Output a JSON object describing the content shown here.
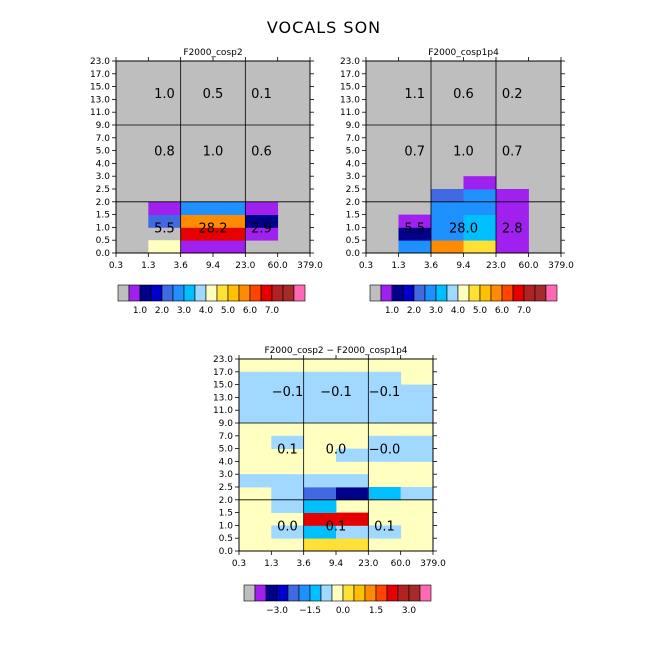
{
  "title": "VOCALS SON",
  "chart_data": [
    {
      "type": "heatmap",
      "title": "F2000_cosp2",
      "x_ticks": [
        "0.3",
        "1.3",
        "3.6",
        "9.4",
        "23.0",
        "60.0",
        "379.0"
      ],
      "y_ticks": [
        "0.0",
        "0.5",
        "1.0",
        "1.5",
        "2.0",
        "2.5",
        "3.0",
        "4.0",
        "5.0",
        "7.0",
        "9.0",
        "11.0",
        "13.0",
        "15.0",
        "17.0",
        "23.0"
      ],
      "background": "#bebebe",
      "cells": [
        {
          "x": 1,
          "y": 0,
          "c": 8
        },
        {
          "x": 2,
          "y": 0,
          "c": 1
        },
        {
          "x": 3,
          "y": 0,
          "c": 1
        },
        {
          "x": 2,
          "y": 1,
          "c": 13
        },
        {
          "x": 3,
          "y": 1,
          "c": 13
        },
        {
          "x": 4,
          "y": 1,
          "c": 1
        },
        {
          "x": 1,
          "y": 2,
          "c": 4
        },
        {
          "x": 2,
          "y": 2,
          "c": 11
        },
        {
          "x": 3,
          "y": 2,
          "c": 11
        },
        {
          "x": 4,
          "y": 2,
          "c": 2
        },
        {
          "x": 1,
          "y": 3,
          "c": 1
        },
        {
          "x": 2,
          "y": 3,
          "c": 5
        },
        {
          "x": 3,
          "y": 3,
          "c": 5
        },
        {
          "x": 4,
          "y": 3,
          "c": 1
        }
      ],
      "region_values": [
        {
          "xr": [
            1,
            2
          ],
          "yr": [
            0,
            4
          ],
          "v": "5.5"
        },
        {
          "xr": [
            2,
            4
          ],
          "yr": [
            0,
            4
          ],
          "v": "28.2"
        },
        {
          "xr": [
            4,
            5
          ],
          "yr": [
            0,
            4
          ],
          "v": "2.9"
        },
        {
          "xr": [
            1,
            2
          ],
          "yr": [
            6,
            10
          ],
          "v": "0.8"
        },
        {
          "xr": [
            2,
            4
          ],
          "yr": [
            6,
            10
          ],
          "v": "1.0"
        },
        {
          "xr": [
            4,
            5
          ],
          "yr": [
            6,
            10
          ],
          "v": "0.6"
        },
        {
          "xr": [
            1,
            2
          ],
          "yr": [
            10,
            15
          ],
          "v": "1.0"
        },
        {
          "xr": [
            2,
            4
          ],
          "yr": [
            10,
            15
          ],
          "v": "0.5"
        },
        {
          "xr": [
            4,
            5
          ],
          "yr": [
            10,
            15
          ],
          "v": "0.1"
        }
      ],
      "colorbar": {
        "colors": [
          "#bebebe",
          "#a020f0",
          "#00008b",
          "#0000cd",
          "#4169e1",
          "#1e90ff",
          "#00bfff",
          "#a0d8ff",
          "#ffffc0",
          "#ffe135",
          "#ffc000",
          "#ff8c00",
          "#ff4500",
          "#e60000",
          "#b22222",
          "#a52a2a",
          "#ff69b4"
        ],
        "labels": [
          "1.0",
          "2.0",
          "3.0",
          "4.0",
          "5.0",
          "6.0",
          "7.0"
        ]
      }
    },
    {
      "type": "heatmap",
      "title": "F2000_cosp1p4",
      "x_ticks": [
        "0.3",
        "1.3",
        "3.6",
        "9.4",
        "23.0",
        "60.0",
        "379.0"
      ],
      "y_ticks": [
        "0.0",
        "0.5",
        "1.0",
        "1.5",
        "2.0",
        "2.5",
        "3.0",
        "4.0",
        "5.0",
        "7.0",
        "9.0",
        "11.0",
        "13.0",
        "15.0",
        "17.0",
        "23.0"
      ],
      "background": "#bebebe",
      "cells": [
        {
          "x": 1,
          "y": 0,
          "c": 5
        },
        {
          "x": 2,
          "y": 0,
          "c": 11
        },
        {
          "x": 3,
          "y": 0,
          "c": 9
        },
        {
          "x": 4,
          "y": 0,
          "c": 1
        },
        {
          "x": 1,
          "y": 1,
          "c": 2
        },
        {
          "x": 2,
          "y": 1,
          "c": 5
        },
        {
          "x": 3,
          "y": 1,
          "c": 6
        },
        {
          "x": 4,
          "y": 1,
          "c": 1
        },
        {
          "x": 1,
          "y": 2,
          "c": 1
        },
        {
          "x": 2,
          "y": 2,
          "c": 5
        },
        {
          "x": 3,
          "y": 2,
          "c": 6
        },
        {
          "x": 4,
          "y": 2,
          "c": 1
        },
        {
          "x": 2,
          "y": 3,
          "c": 5
        },
        {
          "x": 3,
          "y": 3,
          "c": 5
        },
        {
          "x": 4,
          "y": 3,
          "c": 1
        },
        {
          "x": 2,
          "y": 4,
          "c": 4
        },
        {
          "x": 3,
          "y": 4,
          "c": 5
        },
        {
          "x": 4,
          "y": 4,
          "c": 1
        },
        {
          "x": 3,
          "y": 5,
          "c": 1
        }
      ],
      "region_values": [
        {
          "xr": [
            1,
            2
          ],
          "yr": [
            0,
            4
          ],
          "v": "5.5"
        },
        {
          "xr": [
            2,
            4
          ],
          "yr": [
            0,
            4
          ],
          "v": "28.0"
        },
        {
          "xr": [
            4,
            5
          ],
          "yr": [
            0,
            4
          ],
          "v": "2.8"
        },
        {
          "xr": [
            1,
            2
          ],
          "yr": [
            6,
            10
          ],
          "v": "0.7"
        },
        {
          "xr": [
            2,
            4
          ],
          "yr": [
            6,
            10
          ],
          "v": "1.0"
        },
        {
          "xr": [
            4,
            5
          ],
          "yr": [
            6,
            10
          ],
          "v": "0.7"
        },
        {
          "xr": [
            1,
            2
          ],
          "yr": [
            10,
            15
          ],
          "v": "1.1"
        },
        {
          "xr": [
            2,
            4
          ],
          "yr": [
            10,
            15
          ],
          "v": "0.6"
        },
        {
          "xr": [
            4,
            5
          ],
          "yr": [
            10,
            15
          ],
          "v": "0.2"
        }
      ],
      "colorbar": {
        "colors": [
          "#bebebe",
          "#a020f0",
          "#00008b",
          "#0000cd",
          "#4169e1",
          "#1e90ff",
          "#00bfff",
          "#a0d8ff",
          "#ffffc0",
          "#ffe135",
          "#ffc000",
          "#ff8c00",
          "#ff4500",
          "#e60000",
          "#b22222",
          "#a52a2a",
          "#ff69b4"
        ],
        "labels": [
          "1.0",
          "2.0",
          "3.0",
          "4.0",
          "5.0",
          "6.0",
          "7.0"
        ]
      }
    },
    {
      "type": "heatmap",
      "title": "F2000_cosp2 − F2000_cosp1p4",
      "x_ticks": [
        "0.3",
        "1.3",
        "3.6",
        "9.4",
        "23.0",
        "60.0",
        "379.0"
      ],
      "y_ticks": [
        "0.0",
        "0.5",
        "1.0",
        "1.5",
        "2.0",
        "2.5",
        "3.0",
        "4.0",
        "5.0",
        "7.0",
        "9.0",
        "11.0",
        "13.0",
        "15.0",
        "17.0",
        "23.0"
      ],
      "background": "#ffffc0",
      "cells": [
        {
          "x": 2,
          "y": 0,
          "c": 9
        },
        {
          "x": 3,
          "y": 0,
          "c": 9
        },
        {
          "x": 1,
          "y": 1,
          "c": 7
        },
        {
          "x": 2,
          "y": 1,
          "c": 6
        },
        {
          "x": 3,
          "y": 1,
          "c": 7
        },
        {
          "x": 4,
          "y": 1,
          "c": 7
        },
        {
          "x": 2,
          "y": 2,
          "c": 13
        },
        {
          "x": 3,
          "y": 2,
          "c": 13
        },
        {
          "x": 1,
          "y": 3,
          "c": 7
        },
        {
          "x": 2,
          "y": 3,
          "c": 6
        },
        {
          "x": 1,
          "y": 4,
          "c": 7
        },
        {
          "x": 2,
          "y": 4,
          "c": 4
        },
        {
          "x": 3,
          "y": 4,
          "c": 2
        },
        {
          "x": 4,
          "y": 4,
          "c": 6
        },
        {
          "x": 5,
          "y": 4,
          "c": 7
        },
        {
          "x": 0,
          "y": 5,
          "c": 7
        },
        {
          "x": 1,
          "y": 5,
          "c": 7
        },
        {
          "x": 2,
          "y": 5,
          "c": 7
        },
        {
          "x": 3,
          "y": 5,
          "c": 7
        },
        {
          "x": 3,
          "y": 7,
          "c": 7
        },
        {
          "x": 4,
          "y": 7,
          "c": 7
        },
        {
          "x": 5,
          "y": 7,
          "c": 7
        },
        {
          "x": 1,
          "y": 8,
          "c": 7
        },
        {
          "x": 4,
          "y": 8,
          "c": 7
        },
        {
          "x": 5,
          "y": 8,
          "c": 7
        },
        {
          "x": 0,
          "y": 10,
          "c": 7
        },
        {
          "x": 1,
          "y": 10,
          "c": 7
        },
        {
          "x": 2,
          "y": 10,
          "c": 7
        },
        {
          "x": 3,
          "y": 10,
          "c": 7
        },
        {
          "x": 4,
          "y": 10,
          "c": 7
        },
        {
          "x": 5,
          "y": 10,
          "c": 7
        },
        {
          "x": 0,
          "y": 11,
          "c": 7
        },
        {
          "x": 1,
          "y": 11,
          "c": 7
        },
        {
          "x": 2,
          "y": 11,
          "c": 7
        },
        {
          "x": 3,
          "y": 11,
          "c": 7
        },
        {
          "x": 4,
          "y": 11,
          "c": 7
        },
        {
          "x": 5,
          "y": 11,
          "c": 7
        },
        {
          "x": 0,
          "y": 12,
          "c": 7
        },
        {
          "x": 1,
          "y": 12,
          "c": 7
        },
        {
          "x": 2,
          "y": 12,
          "c": 7
        },
        {
          "x": 3,
          "y": 12,
          "c": 7
        },
        {
          "x": 4,
          "y": 12,
          "c": 7
        },
        {
          "x": 5,
          "y": 12,
          "c": 7
        },
        {
          "x": 0,
          "y": 13,
          "c": 7
        },
        {
          "x": 1,
          "y": 13,
          "c": 7
        },
        {
          "x": 2,
          "y": 13,
          "c": 7
        },
        {
          "x": 3,
          "y": 13,
          "c": 7
        },
        {
          "x": 4,
          "y": 13,
          "c": 7
        }
      ],
      "region_values": [
        {
          "xr": [
            1,
            2
          ],
          "yr": [
            0,
            4
          ],
          "v": "0.0"
        },
        {
          "xr": [
            2,
            4
          ],
          "yr": [
            0,
            4
          ],
          "v": "0.1"
        },
        {
          "xr": [
            4,
            5
          ],
          "yr": [
            0,
            4
          ],
          "v": "0.1"
        },
        {
          "xr": [
            1,
            2
          ],
          "yr": [
            6,
            10
          ],
          "v": "0.1"
        },
        {
          "xr": [
            2,
            4
          ],
          "yr": [
            6,
            10
          ],
          "v": "0.0"
        },
        {
          "xr": [
            4,
            5
          ],
          "yr": [
            6,
            10
          ],
          "v": "−0.0"
        },
        {
          "xr": [
            1,
            2
          ],
          "yr": [
            10,
            15
          ],
          "v": "−0.1"
        },
        {
          "xr": [
            2,
            4
          ],
          "yr": [
            10,
            15
          ],
          "v": "−0.1"
        },
        {
          "xr": [
            4,
            5
          ],
          "yr": [
            10,
            15
          ],
          "v": "−0.1"
        }
      ],
      "colorbar": {
        "colors": [
          "#bebebe",
          "#a020f0",
          "#00008b",
          "#0000cd",
          "#4169e1",
          "#1e90ff",
          "#00bfff",
          "#a0d8ff",
          "#ffffc0",
          "#ffe135",
          "#ffc000",
          "#ff8c00",
          "#ff4500",
          "#e60000",
          "#b22222",
          "#a52a2a",
          "#ff69b4"
        ],
        "labels": [
          "−3.0",
          "−1.5",
          "0.0",
          "1.5",
          "3.0"
        ]
      }
    }
  ]
}
